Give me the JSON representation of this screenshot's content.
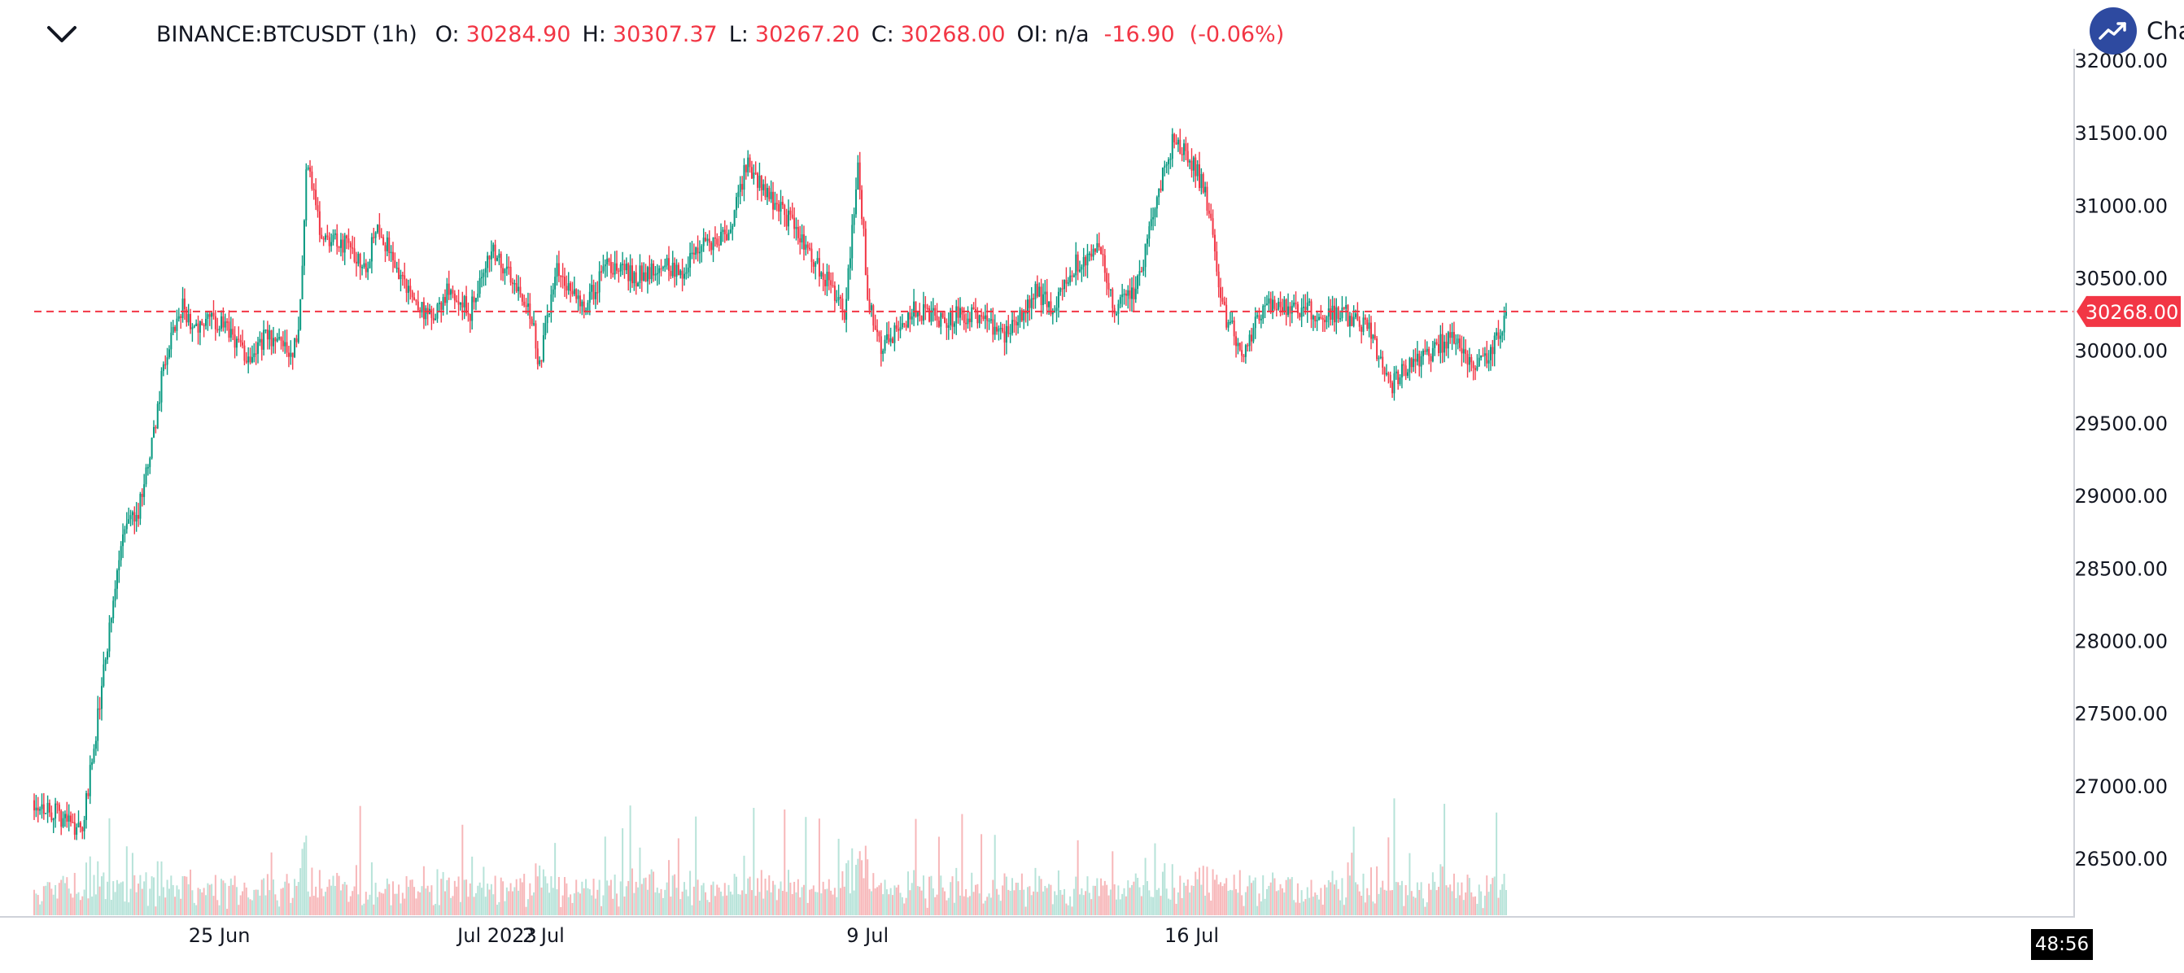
{
  "header": {
    "symbol": "BINANCE:BTCUSDT (1h)",
    "open_label": "O:",
    "open_value": "30284.90",
    "high_label": "H:",
    "high_value": "30307.37",
    "low_label": "L:",
    "low_value": "30267.20",
    "close_label": "C:",
    "close_value": "30268.00",
    "oi_label": "OI:",
    "oi_value": "n/a",
    "change_value": "-16.90",
    "change_pct": "(-0.06%)"
  },
  "brand": {
    "text": "Charts p"
  },
  "timer": {
    "text": "48:56"
  },
  "colors": {
    "up": "#089981",
    "down": "#f23645",
    "up_volume": "#b7e3d9",
    "down_volume": "#f7b7b9",
    "last_price": "#f23645",
    "brand": "#2e4aa0"
  },
  "chart_data": {
    "type": "candlestick",
    "symbol": "BINANCE:BTCUSDT",
    "interval": "1h",
    "last_price": 30268.0,
    "last_price_label": "30268.00",
    "ylim": [
      26200,
      32000
    ],
    "y_ticks": [
      32000,
      31500,
      31000,
      30500,
      30000,
      29500,
      29000,
      28500,
      28000,
      27500,
      27000,
      26500
    ],
    "y_tick_labels": [
      "32000.00",
      "31500.00",
      "31000.00",
      "30500.00",
      "30000.00",
      "29500.00",
      "29000.00",
      "28500.00",
      "28000.00",
      "27500.00",
      "27000.00",
      "26500.00"
    ],
    "x_tick_labels": [
      {
        "label": "25 Jun",
        "day": 4
      },
      {
        "label": "Jul 2023",
        "day": 10
      },
      {
        "label": "2 Jul",
        "day": 11
      },
      {
        "label": "9 Jul",
        "day": 18
      },
      {
        "label": "16 Jul",
        "day": 25
      }
    ],
    "x_range_days": [
      0,
      29.6
    ],
    "hours_per_candle": 1,
    "price_path": [
      [
        0,
        26900
      ],
      [
        0.6,
        26780
      ],
      [
        1.05,
        26700
      ],
      [
        1.3,
        27300
      ],
      [
        1.6,
        28000
      ],
      [
        1.85,
        28600
      ],
      [
        2.05,
        28850
      ],
      [
        2.25,
        28900
      ],
      [
        2.55,
        29350
      ],
      [
        2.8,
        29900
      ],
      [
        3.2,
        30300
      ],
      [
        3.5,
        30150
      ],
      [
        3.9,
        30200
      ],
      [
        4.3,
        30100
      ],
      [
        4.6,
        29950
      ],
      [
        5.0,
        30100
      ],
      [
        5.5,
        30000
      ],
      [
        5.7,
        30050
      ],
      [
        5.9,
        31350
      ],
      [
        6.2,
        30800
      ],
      [
        6.6,
        30750
      ],
      [
        7.2,
        30600
      ],
      [
        7.4,
        30900
      ],
      [
        7.7,
        30650
      ],
      [
        8.2,
        30350
      ],
      [
        8.6,
        30200
      ],
      [
        9.0,
        30450
      ],
      [
        9.4,
        30250
      ],
      [
        9.9,
        30700
      ],
      [
        10.3,
        30500
      ],
      [
        10.7,
        30300
      ],
      [
        10.9,
        29900
      ],
      [
        11.3,
        30550
      ],
      [
        11.9,
        30300
      ],
      [
        12.4,
        30600
      ],
      [
        13.0,
        30500
      ],
      [
        13.5,
        30600
      ],
      [
        14.0,
        30550
      ],
      [
        14.4,
        30700
      ],
      [
        15.0,
        30800
      ],
      [
        15.4,
        31300
      ],
      [
        15.8,
        31100
      ],
      [
        16.3,
        30900
      ],
      [
        16.7,
        30700
      ],
      [
        17.0,
        30550
      ],
      [
        17.5,
        30250
      ],
      [
        17.8,
        31300
      ],
      [
        18.0,
        30400
      ],
      [
        18.3,
        30000
      ],
      [
        18.7,
        30150
      ],
      [
        19.0,
        30300
      ],
      [
        19.6,
        30200
      ],
      [
        20.0,
        30250
      ],
      [
        20.4,
        30250
      ],
      [
        21.0,
        30100
      ],
      [
        21.6,
        30400
      ],
      [
        22.0,
        30300
      ],
      [
        22.5,
        30600
      ],
      [
        23.0,
        30700
      ],
      [
        23.3,
        30300
      ],
      [
        23.8,
        30400
      ],
      [
        24.2,
        31000
      ],
      [
        24.6,
        31450
      ],
      [
        25.0,
        31300
      ],
      [
        25.3,
        31100
      ],
      [
        25.7,
        30250
      ],
      [
        26.1,
        30000
      ],
      [
        26.6,
        30300
      ],
      [
        27.2,
        30300
      ],
      [
        27.8,
        30250
      ],
      [
        28.3,
        30250
      ],
      [
        28.8,
        30150
      ],
      [
        29.3,
        29750
      ],
      [
        29.7,
        29900
      ],
      [
        30.2,
        30000
      ],
      [
        30.6,
        30100
      ],
      [
        31.1,
        29900
      ],
      [
        31.5,
        30000
      ],
      [
        31.8,
        30268
      ]
    ],
    "volume_scale_max": 5400
  }
}
